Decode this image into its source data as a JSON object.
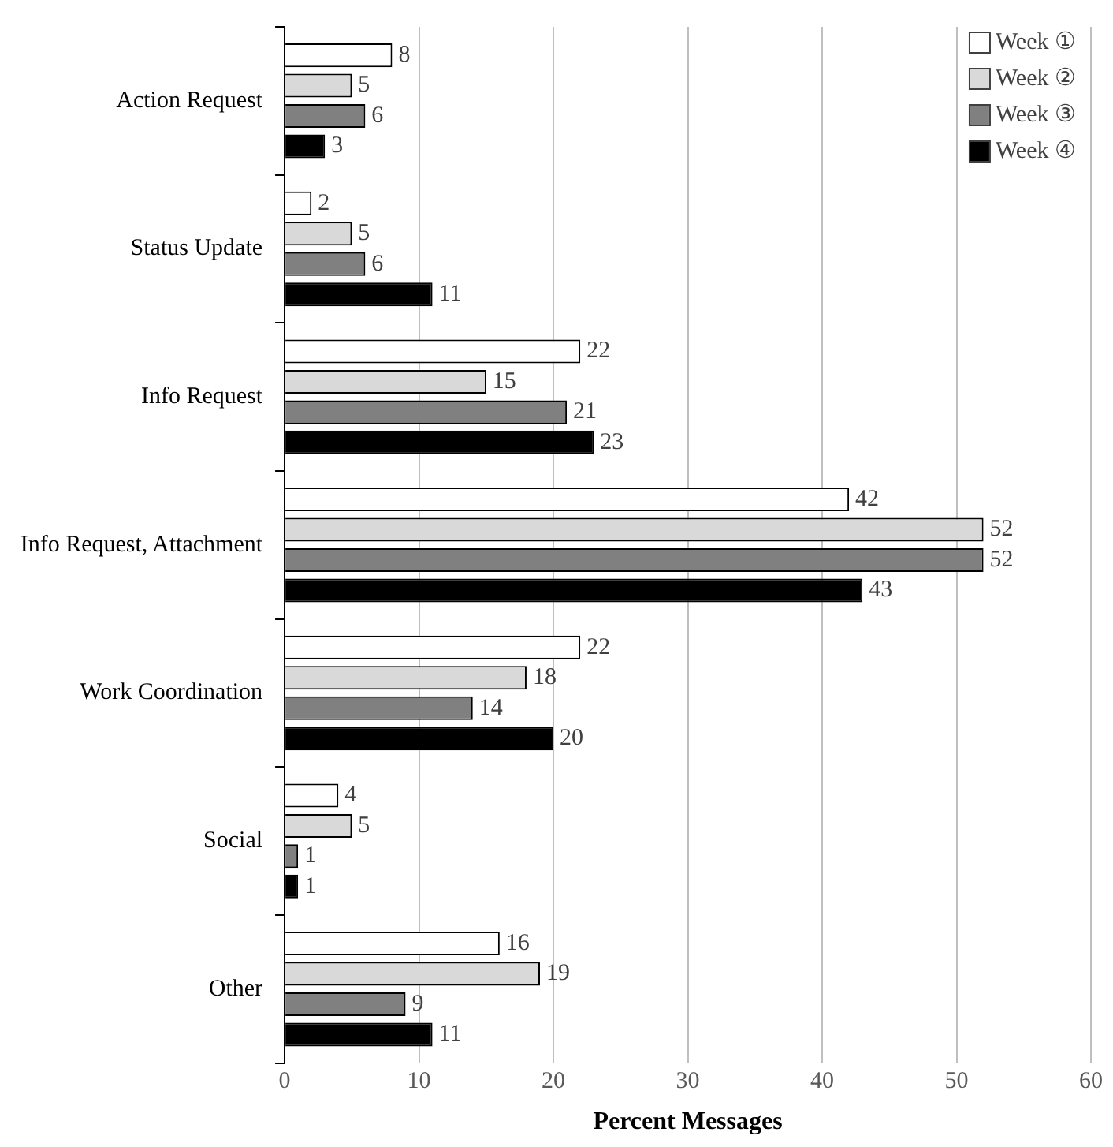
{
  "chart_data": {
    "type": "bar",
    "orientation": "horizontal",
    "xlabel": "Percent Messages",
    "categories": [
      "Action Request",
      "Status Update",
      "Info Request",
      "Info Request, Attachment",
      "Work Coordination",
      "Social",
      "Other"
    ],
    "series": [
      {
        "name": "Week ①",
        "color": "#ffffff",
        "values": [
          8,
          2,
          22,
          42,
          22,
          4,
          16
        ]
      },
      {
        "name": "Week ②",
        "color": "#d9d9d9",
        "values": [
          5,
          5,
          15,
          52,
          18,
          5,
          19
        ]
      },
      {
        "name": "Week ③",
        "color": "#808080",
        "values": [
          6,
          6,
          21,
          52,
          14,
          1,
          9
        ]
      },
      {
        "name": "Week ④",
        "color": "#000000",
        "values": [
          3,
          11,
          23,
          43,
          20,
          1,
          11
        ]
      }
    ],
    "xlim": [
      0,
      60
    ],
    "xticks": [
      0,
      10,
      20,
      30,
      40,
      50,
      60
    ],
    "grid": "x",
    "legend": "top right",
    "data_labels": true
  }
}
